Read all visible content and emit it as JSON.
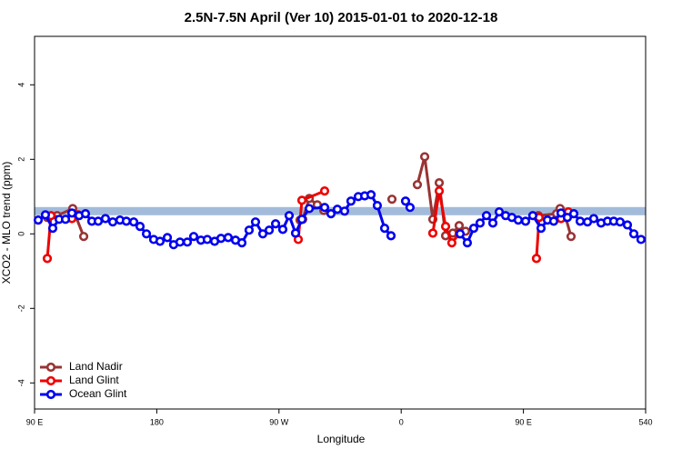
{
  "chart_data": {
    "type": "line",
    "title": "2.5N-7.5N April (Ver 10)   2015-01-01 to 2020-12-18",
    "xlabel": "Longitude",
    "ylabel": "XCO2 - MLO trend (ppm)",
    "xlim": [
      90,
      540
    ],
    "ylim": [
      -4.7,
      5.3
    ],
    "xticks": [
      {
        "value": 90,
        "label": "90 E"
      },
      180,
      {
        "value": 270,
        "label": "90 W"
      },
      {
        "value": 360,
        "label": "0"
      },
      {
        "value": 450,
        "label": "90 E"
      },
      540
    ],
    "yticks": [
      -4,
      -2,
      0,
      2,
      4
    ],
    "band": {
      "range": [
        0.5,
        0.72
      ],
      "color": "#a3bbdb"
    },
    "legend": "bottom left",
    "series": [
      {
        "name": "Land Nadir",
        "color": "#993333",
        "x": [
          99.4,
          106.7,
          118.1,
          126.2,
          200,
          285.5,
          287.5,
          292.3,
          298.2,
          303,
          330,
          353.2,
          360,
          371.9,
          377.3,
          383.3,
          388,
          392.7,
          398,
          402.7,
          407.4,
          430,
          461,
          474.4,
          477,
          481.1,
          485.1
        ],
        "values": [
          0.44,
          0.49,
          0.68,
          -0.07,
          null,
          0.37,
          0.39,
          0.95,
          0.78,
          0.63,
          null,
          0.93,
          null,
          1.32,
          2.07,
          0.39,
          1.37,
          -0.05,
          0.02,
          0.22,
          0.07,
          null,
          0.49,
          0.54,
          0.68,
          0.44,
          -0.07
        ]
      },
      {
        "name": "Land Glint",
        "color": "#ee0000",
        "x": [
          99.4,
          102.1,
          117.5,
          122.1,
          200,
          284.2,
          286.9,
          303.6,
          340,
          383.3,
          388,
          392.7,
          397.3,
          402.7,
          430,
          459.6,
          461.6,
          470,
          477.7,
          483.1
        ],
        "values": [
          -0.66,
          0.49,
          0.41,
          0.51,
          null,
          -0.15,
          0.9,
          1.15,
          null,
          0.02,
          1.15,
          0.2,
          -0.24,
          0,
          null,
          -0.66,
          0.44,
          null,
          0.41,
          0.59
        ]
      },
      {
        "name": "Ocean Glint",
        "color": "#0000ee",
        "x": [
          92.7,
          98,
          103.4,
          108.1,
          112.8,
          117.5,
          122.8,
          127.5,
          132.2,
          136.9,
          142.2,
          147.6,
          152.9,
          157.6,
          163,
          167.7,
          172.4,
          177.7,
          182.4,
          187.8,
          192.4,
          197.1,
          202.5,
          207.2,
          212.5,
          217.2,
          222.6,
          227.3,
          232.6,
          238,
          242.7,
          248,
          252.7,
          258.1,
          262.8,
          267.5,
          272.8,
          277.5,
          282.2,
          286.9,
          292.3,
          303.6,
          308.3,
          313,
          318.3,
          323,
          328.4,
          333.1,
          337.8,
          342.4,
          347.8,
          352.5,
          358,
          363.2,
          366.5,
          385,
          403.4,
          408.7,
          413.4,
          418.1,
          422.8,
          427.5,
          432.2,
          436.9,
          441.5,
          446.2,
          451.6,
          456.9,
          463,
          467.7,
          472.3,
          477.7,
          482.4,
          487.1,
          491.8,
          497.2,
          501.8,
          507.2,
          511.9,
          516.5,
          521.2,
          526.6,
          531.3,
          536.6
        ],
        "values": [
          0.37,
          0.51,
          0.15,
          0.39,
          0.39,
          0.56,
          0.49,
          0.54,
          0.34,
          0.34,
          0.41,
          0.32,
          0.37,
          0.34,
          0.32,
          0.2,
          0,
          -0.15,
          -0.2,
          -0.1,
          -0.29,
          -0.22,
          -0.22,
          -0.07,
          -0.17,
          -0.15,
          -0.2,
          -0.12,
          -0.1,
          -0.17,
          -0.24,
          0.1,
          0.32,
          0,
          0.1,
          0.27,
          0.12,
          0.49,
          0.02,
          0.39,
          0.68,
          0.71,
          0.54,
          0.66,
          0.61,
          0.88,
          1.0,
          1.02,
          1.05,
          0.76,
          0.15,
          -0.05,
          null,
          0.88,
          0.71,
          null,
          0,
          -0.24,
          0.15,
          0.29,
          0.49,
          0.29,
          0.59,
          0.49,
          0.44,
          0.37,
          0.34,
          0.49,
          0.15,
          0.37,
          0.34,
          0.56,
          0.44,
          0.54,
          0.34,
          0.32,
          0.41,
          0.29,
          0.34,
          0.34,
          0.32,
          0.24,
          0,
          -0.15
        ]
      }
    ]
  }
}
